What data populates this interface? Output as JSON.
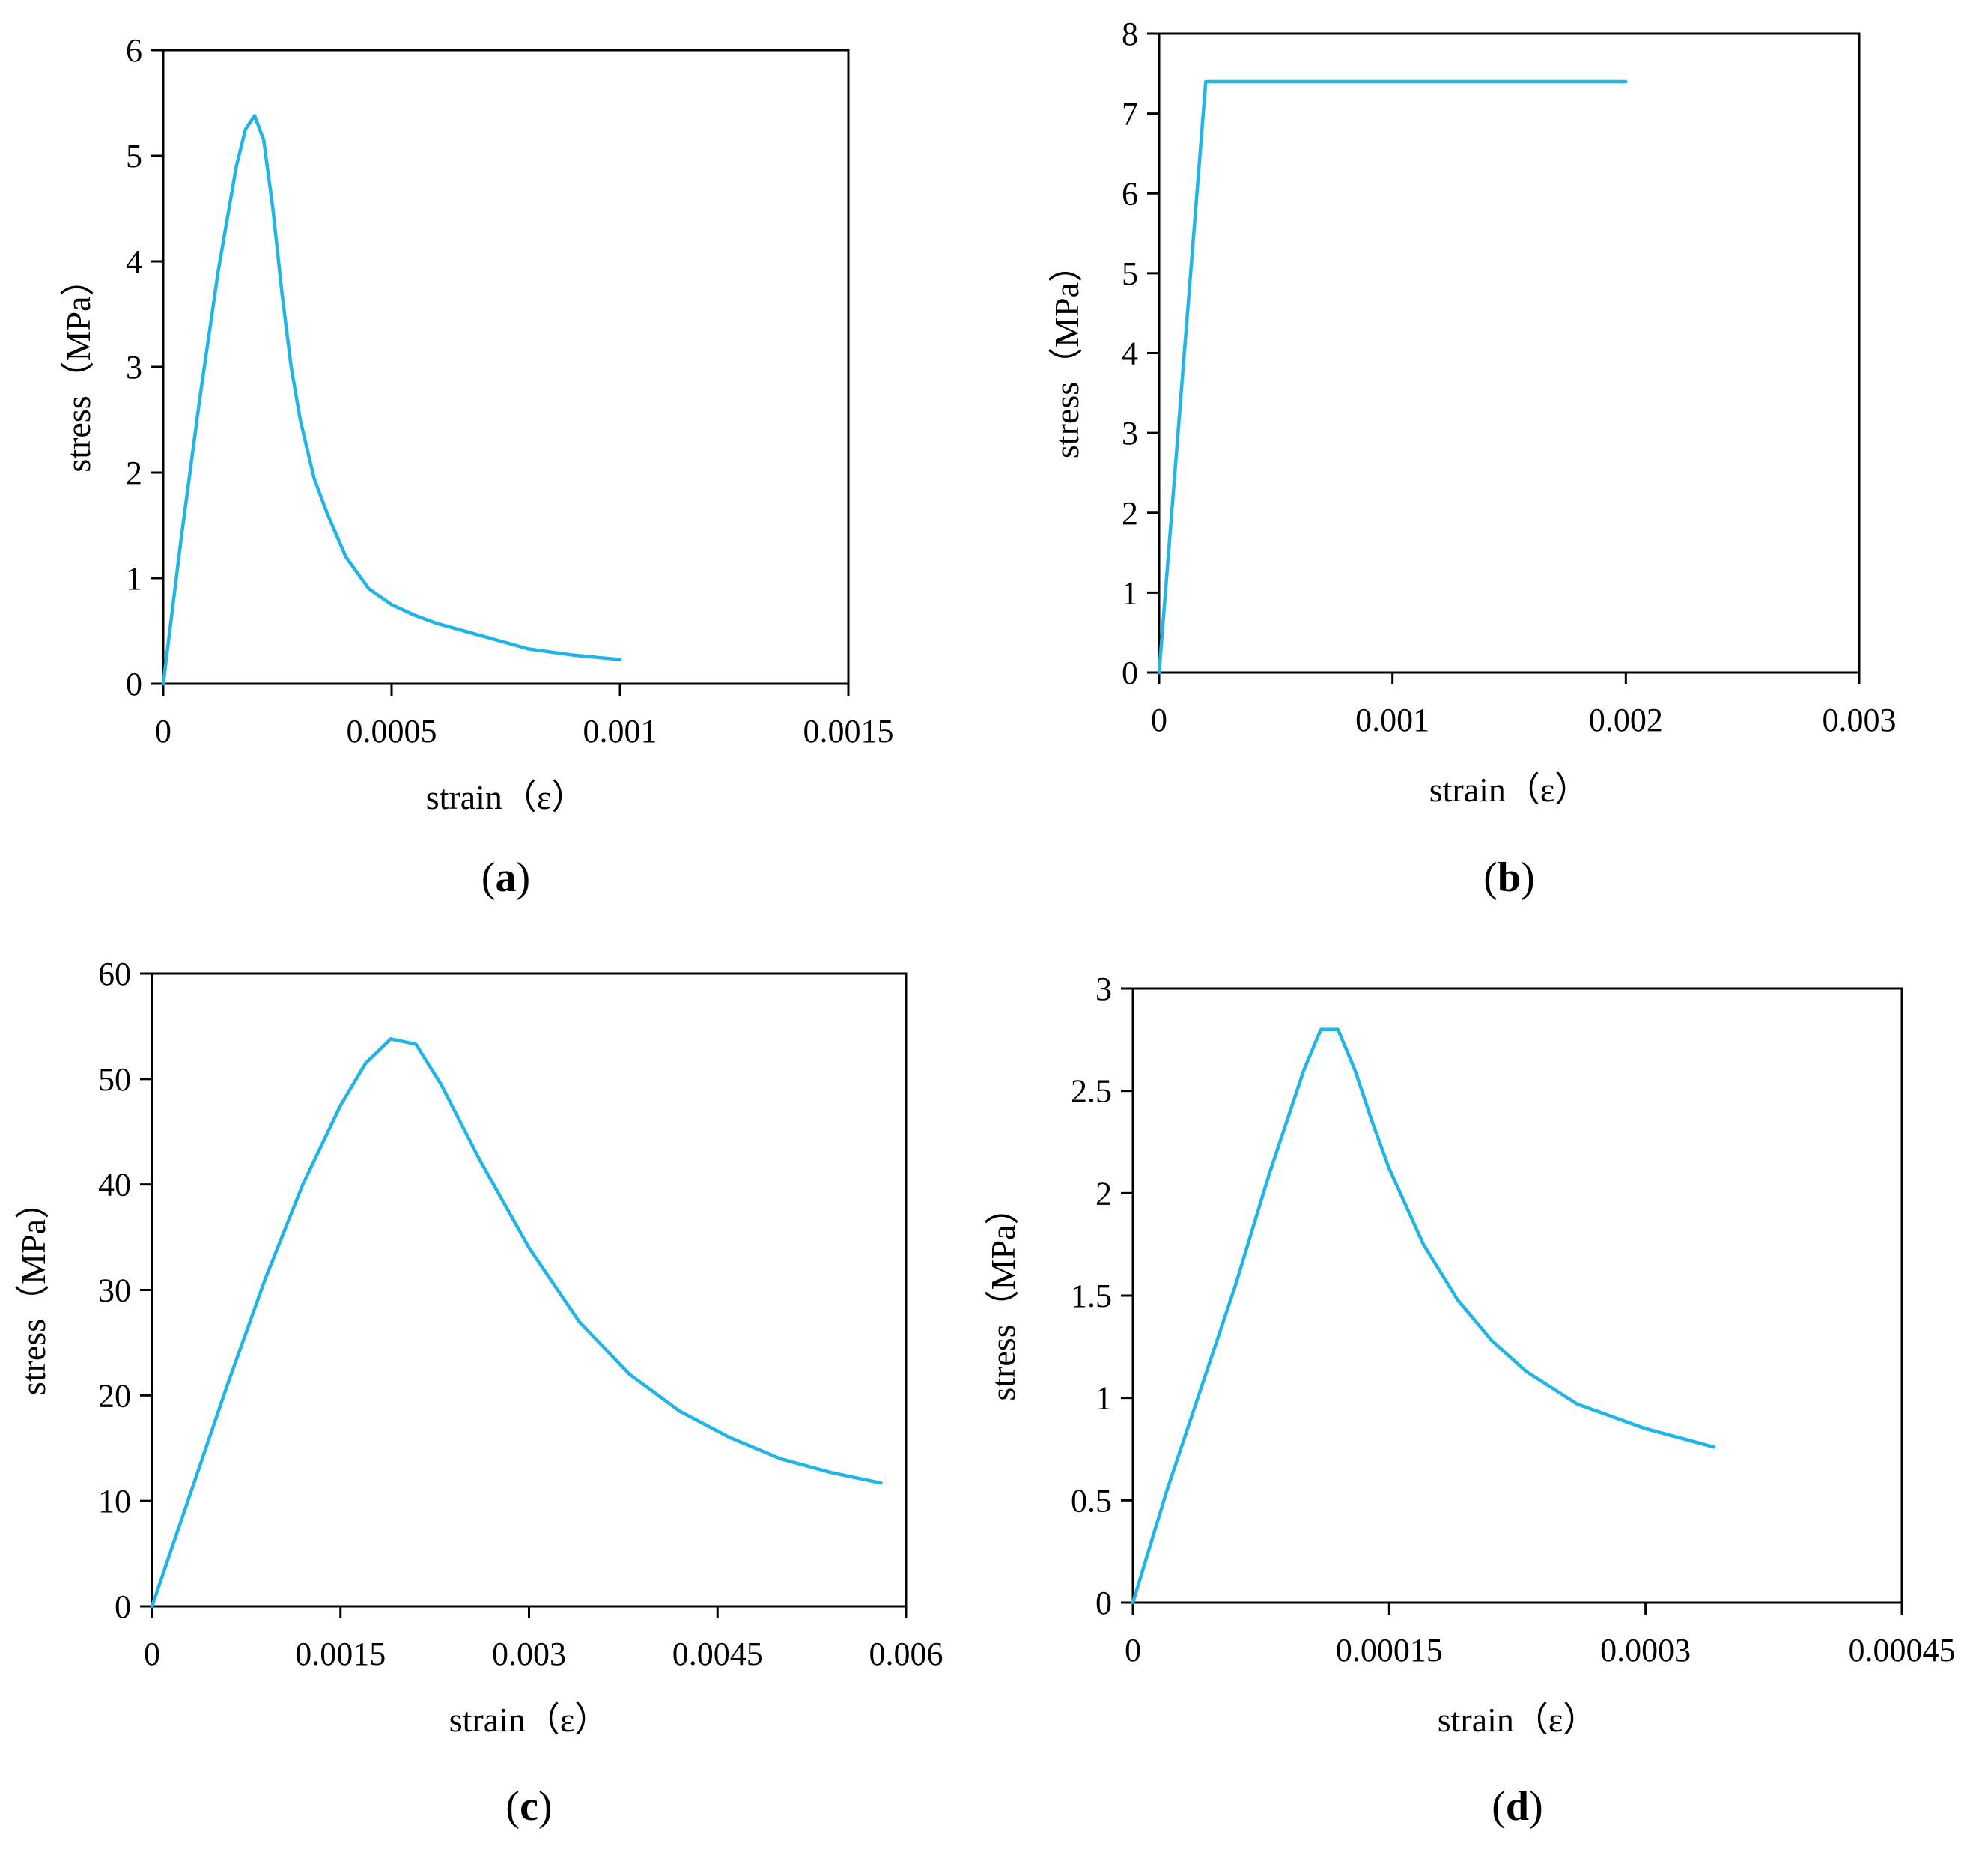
{
  "curve_color": "#1fb5e8",
  "chart_data": [
    {
      "panel": "(a)",
      "panel_letter": "a",
      "type": "line",
      "xlabel": "strain（ε）",
      "ylabel": "stress（MPa）",
      "xlim": [
        0,
        0.0015
      ],
      "ylim": [
        0,
        6
      ],
      "xticks": [
        0,
        0.0005,
        0.001,
        0.0015
      ],
      "xtick_labels": [
        "0",
        "0.0005",
        "0.001",
        "0.0015"
      ],
      "yticks": [
        0,
        1,
        2,
        3,
        4,
        5,
        6
      ],
      "ytick_labels": [
        "0",
        "1",
        "2",
        "3",
        "4",
        "5",
        "6"
      ],
      "series": [
        {
          "name": "stress",
          "x": [
            0,
            4e-05,
            8e-05,
            0.00012,
            0.00016,
            0.00018,
            0.0002,
            0.00022,
            0.00024,
            0.00026,
            0.00028,
            0.0003,
            0.00033,
            0.00036,
            0.0004,
            0.00045,
            0.0005,
            0.00055,
            0.0006,
            0.0007,
            0.0008,
            0.0009,
            0.001
          ],
          "y": [
            0,
            1.4,
            2.7,
            3.9,
            4.9,
            5.25,
            5.38,
            5.15,
            4.5,
            3.7,
            3.0,
            2.5,
            1.95,
            1.6,
            1.2,
            0.9,
            0.75,
            0.65,
            0.57,
            0.45,
            0.33,
            0.27,
            0.23
          ]
        }
      ]
    },
    {
      "panel": "(b)",
      "panel_letter": "b",
      "type": "line",
      "xlabel": "strain（ε）",
      "ylabel": "stress（MPa）",
      "xlim": [
        0,
        0.003
      ],
      "ylim": [
        0,
        8
      ],
      "xticks": [
        0,
        0.001,
        0.002,
        0.003
      ],
      "xtick_labels": [
        "0",
        "0.001",
        "0.002",
        "0.003"
      ],
      "yticks": [
        0,
        1,
        2,
        3,
        4,
        5,
        6,
        7,
        8
      ],
      "ytick_labels": [
        "0",
        "1",
        "2",
        "3",
        "4",
        "5",
        "6",
        "7",
        "8"
      ],
      "series": [
        {
          "name": "stress",
          "x": [
            0,
            0.0002,
            0.002
          ],
          "y": [
            0,
            7.4,
            7.4
          ]
        }
      ]
    },
    {
      "panel": "(c)",
      "panel_letter": "c",
      "type": "line",
      "xlabel": "strain（ε）",
      "ylabel": "stress（MPa）",
      "xlim": [
        0,
        0.006
      ],
      "ylim": [
        0,
        60
      ],
      "xticks": [
        0,
        0.0015,
        0.003,
        0.0045,
        0.006
      ],
      "xtick_labels": [
        "0",
        "0.0015",
        "0.003",
        "0.0045",
        "0.006"
      ],
      "yticks": [
        0,
        10,
        20,
        30,
        40,
        50,
        60
      ],
      "ytick_labels": [
        "0",
        "10",
        "20",
        "30",
        "40",
        "50",
        "60"
      ],
      "series": [
        {
          "name": "stress",
          "x": [
            0,
            0.0003,
            0.0006,
            0.0009,
            0.0012,
            0.0015,
            0.0017,
            0.0019,
            0.0021,
            0.0023,
            0.0026,
            0.003,
            0.0034,
            0.0038,
            0.0042,
            0.0046,
            0.005,
            0.0054,
            0.0058
          ],
          "y": [
            0,
            10.5,
            21,
            31,
            40,
            47.5,
            51.5,
            53.8,
            53.3,
            49.5,
            42.5,
            34,
            27,
            22,
            18.5,
            16,
            14,
            12.7,
            11.7
          ]
        }
      ]
    },
    {
      "panel": "(d)",
      "panel_letter": "d",
      "type": "line",
      "xlabel": "strain（ε）",
      "ylabel": "stress（MPa）",
      "xlim": [
        0,
        0.00045
      ],
      "ylim": [
        0,
        3
      ],
      "xticks": [
        0,
        0.00015,
        0.0003,
        0.00045
      ],
      "xtick_labels": [
        "0",
        "0.00015",
        "0.0003",
        "0.00045"
      ],
      "yticks": [
        0,
        0.5,
        1,
        1.5,
        2,
        2.5,
        3
      ],
      "ytick_labels": [
        "0",
        "0.5",
        "1",
        "1.5",
        "2",
        "2.5",
        "3"
      ],
      "series": [
        {
          "name": "stress",
          "x": [
            0,
            2e-05,
            4e-05,
            6e-05,
            8e-05,
            0.0001,
            0.00011,
            0.00012,
            0.00013,
            0.00014,
            0.00015,
            0.00017,
            0.00019,
            0.00021,
            0.00023,
            0.00026,
            0.0003,
            0.00034
          ],
          "y": [
            0,
            0.55,
            1.05,
            1.55,
            2.1,
            2.6,
            2.8,
            2.8,
            2.6,
            2.35,
            2.12,
            1.75,
            1.48,
            1.28,
            1.13,
            0.97,
            0.85,
            0.76
          ]
        }
      ]
    }
  ]
}
